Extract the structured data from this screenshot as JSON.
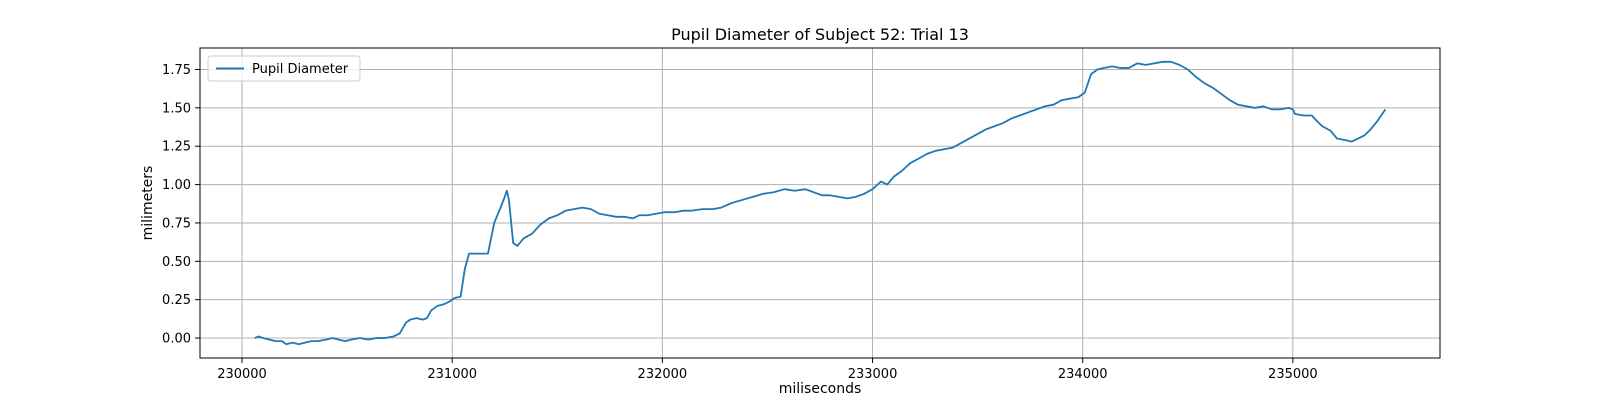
{
  "chart_data": {
    "type": "line",
    "title": "Pupil Diameter of Subject 52: Trial 13",
    "xlabel": "miliseconds",
    "ylabel": "milimeters",
    "xlim": [
      229800,
      235700
    ],
    "ylim": [
      -0.13,
      1.89
    ],
    "xticks": [
      {
        "value": 230000,
        "label": "230000"
      },
      {
        "value": 231000,
        "label": "231000"
      },
      {
        "value": 232000,
        "label": "232000"
      },
      {
        "value": 233000,
        "label": "233000"
      },
      {
        "value": 234000,
        "label": "234000"
      },
      {
        "value": 235000,
        "label": "235000"
      }
    ],
    "yticks": [
      {
        "value": 0.0,
        "label": "0.00"
      },
      {
        "value": 0.25,
        "label": "0.25"
      },
      {
        "value": 0.5,
        "label": "0.50"
      },
      {
        "value": 0.75,
        "label": "0.75"
      },
      {
        "value": 1.0,
        "label": "1.00"
      },
      {
        "value": 1.25,
        "label": "1.25"
      },
      {
        "value": 1.5,
        "label": "1.50"
      },
      {
        "value": 1.75,
        "label": "1.75"
      }
    ],
    "grid": true,
    "legend_position": "upper-left",
    "series": [
      {
        "name": "Pupil Diameter",
        "color": "#1f77b4",
        "points": [
          [
            230060,
            0.0
          ],
          [
            230080,
            0.01
          ],
          [
            230100,
            0.0
          ],
          [
            230130,
            -0.01
          ],
          [
            230160,
            -0.02
          ],
          [
            230190,
            -0.02
          ],
          [
            230210,
            -0.04
          ],
          [
            230240,
            -0.03
          ],
          [
            230270,
            -0.04
          ],
          [
            230300,
            -0.03
          ],
          [
            230330,
            -0.02
          ],
          [
            230360,
            -0.02
          ],
          [
            230400,
            -0.01
          ],
          [
            230430,
            0.0
          ],
          [
            230460,
            -0.01
          ],
          [
            230490,
            -0.02
          ],
          [
            230520,
            -0.01
          ],
          [
            230560,
            0.0
          ],
          [
            230600,
            -0.01
          ],
          [
            230640,
            0.0
          ],
          [
            230680,
            0.0
          ],
          [
            230720,
            0.01
          ],
          [
            230750,
            0.03
          ],
          [
            230780,
            0.1
          ],
          [
            230800,
            0.12
          ],
          [
            230830,
            0.13
          ],
          [
            230860,
            0.12
          ],
          [
            230880,
            0.13
          ],
          [
            230900,
            0.18
          ],
          [
            230930,
            0.21
          ],
          [
            230960,
            0.22
          ],
          [
            230990,
            0.24
          ],
          [
            231010,
            0.26
          ],
          [
            231040,
            0.27
          ],
          [
            231060,
            0.45
          ],
          [
            231080,
            0.55
          ],
          [
            231110,
            0.55
          ],
          [
            231140,
            0.55
          ],
          [
            231170,
            0.55
          ],
          [
            231200,
            0.75
          ],
          [
            231230,
            0.85
          ],
          [
            231250,
            0.92
          ],
          [
            231260,
            0.96
          ],
          [
            231270,
            0.9
          ],
          [
            231290,
            0.62
          ],
          [
            231310,
            0.6
          ],
          [
            231340,
            0.65
          ],
          [
            231380,
            0.68
          ],
          [
            231420,
            0.74
          ],
          [
            231460,
            0.78
          ],
          [
            231500,
            0.8
          ],
          [
            231540,
            0.83
          ],
          [
            231580,
            0.84
          ],
          [
            231620,
            0.85
          ],
          [
            231660,
            0.84
          ],
          [
            231700,
            0.81
          ],
          [
            231740,
            0.8
          ],
          [
            231780,
            0.79
          ],
          [
            231820,
            0.79
          ],
          [
            231860,
            0.78
          ],
          [
            231890,
            0.8
          ],
          [
            231930,
            0.8
          ],
          [
            231970,
            0.81
          ],
          [
            232010,
            0.82
          ],
          [
            232060,
            0.82
          ],
          [
            232100,
            0.83
          ],
          [
            232140,
            0.83
          ],
          [
            232190,
            0.84
          ],
          [
            232240,
            0.84
          ],
          [
            232280,
            0.85
          ],
          [
            232330,
            0.88
          ],
          [
            232380,
            0.9
          ],
          [
            232430,
            0.92
          ],
          [
            232480,
            0.94
          ],
          [
            232530,
            0.95
          ],
          [
            232580,
            0.97
          ],
          [
            232630,
            0.96
          ],
          [
            232680,
            0.97
          ],
          [
            232720,
            0.95
          ],
          [
            232760,
            0.93
          ],
          [
            232800,
            0.93
          ],
          [
            232840,
            0.92
          ],
          [
            232880,
            0.91
          ],
          [
            232920,
            0.92
          ],
          [
            232960,
            0.94
          ],
          [
            233000,
            0.97
          ],
          [
            233040,
            1.02
          ],
          [
            233070,
            1.0
          ],
          [
            233100,
            1.05
          ],
          [
            233140,
            1.09
          ],
          [
            233180,
            1.14
          ],
          [
            233220,
            1.17
          ],
          [
            233260,
            1.2
          ],
          [
            233300,
            1.22
          ],
          [
            233340,
            1.23
          ],
          [
            233380,
            1.24
          ],
          [
            233420,
            1.27
          ],
          [
            233460,
            1.3
          ],
          [
            233500,
            1.33
          ],
          [
            233540,
            1.36
          ],
          [
            233580,
            1.38
          ],
          [
            233620,
            1.4
          ],
          [
            233660,
            1.43
          ],
          [
            233700,
            1.45
          ],
          [
            233740,
            1.47
          ],
          [
            233780,
            1.49
          ],
          [
            233820,
            1.51
          ],
          [
            233860,
            1.52
          ],
          [
            233900,
            1.55
          ],
          [
            233940,
            1.56
          ],
          [
            233980,
            1.57
          ],
          [
            234010,
            1.6
          ],
          [
            234040,
            1.72
          ],
          [
            234070,
            1.75
          ],
          [
            234100,
            1.76
          ],
          [
            234140,
            1.77
          ],
          [
            234180,
            1.76
          ],
          [
            234220,
            1.76
          ],
          [
            234260,
            1.79
          ],
          [
            234300,
            1.78
          ],
          [
            234340,
            1.79
          ],
          [
            234380,
            1.8
          ],
          [
            234420,
            1.8
          ],
          [
            234460,
            1.78
          ],
          [
            234500,
            1.75
          ],
          [
            234540,
            1.7
          ],
          [
            234580,
            1.66
          ],
          [
            234620,
            1.63
          ],
          [
            234660,
            1.59
          ],
          [
            234700,
            1.55
          ],
          [
            234740,
            1.52
          ],
          [
            234780,
            1.51
          ],
          [
            234820,
            1.5
          ],
          [
            234860,
            1.51
          ],
          [
            234900,
            1.49
          ],
          [
            234940,
            1.49
          ],
          [
            234980,
            1.5
          ],
          [
            235000,
            1.49
          ],
          [
            235010,
            1.46
          ],
          [
            235050,
            1.45
          ],
          [
            235090,
            1.45
          ],
          [
            235110,
            1.42
          ],
          [
            235140,
            1.38
          ],
          [
            235180,
            1.35
          ],
          [
            235210,
            1.3
          ],
          [
            235250,
            1.29
          ],
          [
            235280,
            1.28
          ],
          [
            235310,
            1.3
          ],
          [
            235340,
            1.32
          ],
          [
            235370,
            1.36
          ],
          [
            235400,
            1.41
          ],
          [
            235430,
            1.47
          ],
          [
            235440,
            1.49
          ]
        ]
      }
    ]
  }
}
